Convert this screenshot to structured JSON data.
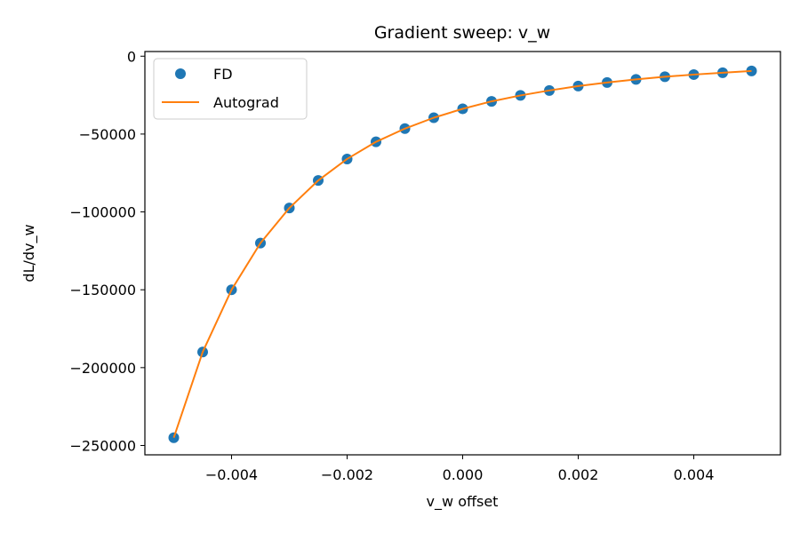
{
  "chart_data": {
    "type": "line",
    "title": "Gradient sweep: v_w",
    "xlabel": "v_w offset",
    "ylabel": "dL/dv_w",
    "xlim": [
      -0.0055,
      0.0055
    ],
    "ylim": [
      -256000,
      3000
    ],
    "xticks": [
      -0.004,
      -0.002,
      0.0,
      0.002,
      0.004
    ],
    "xtick_labels": [
      "−0.004",
      "−0.002",
      "0.000",
      "0.002",
      "0.004"
    ],
    "yticks": [
      0,
      -50000,
      -100000,
      -150000,
      -200000,
      -250000
    ],
    "ytick_labels": [
      "0",
      "−50000",
      "−100000",
      "−150000",
      "−200000",
      "−250000"
    ],
    "legend_position": "top-left",
    "grid": false,
    "x": [
      -0.005,
      -0.0045,
      -0.004,
      -0.0035,
      -0.003,
      -0.0025,
      -0.002,
      -0.0015,
      -0.001,
      -0.0005,
      0.0,
      0.0005,
      0.001,
      0.0015,
      0.002,
      0.0025,
      0.003,
      0.0035,
      0.004,
      0.0045,
      0.005
    ],
    "series": [
      {
        "name": "FD",
        "style": "markers",
        "color": "#1f77b4",
        "values": [
          -245000,
          -190000,
          -150000,
          -120000,
          -97500,
          -79800,
          -66000,
          -55000,
          -46500,
          -39500,
          -33800,
          -29000,
          -25200,
          -22000,
          -19200,
          -16900,
          -14900,
          -13200,
          -11800,
          -10600,
          -9500
        ]
      },
      {
        "name": "Autograd",
        "style": "line",
        "color": "#ff7f0e",
        "values": [
          -245000,
          -190000,
          -150000,
          -120000,
          -97500,
          -79800,
          -66000,
          -55000,
          -46500,
          -39500,
          -33800,
          -29000,
          -25200,
          -22000,
          -19200,
          -16900,
          -14900,
          -13200,
          -11800,
          -10600,
          -9500
        ]
      }
    ]
  }
}
